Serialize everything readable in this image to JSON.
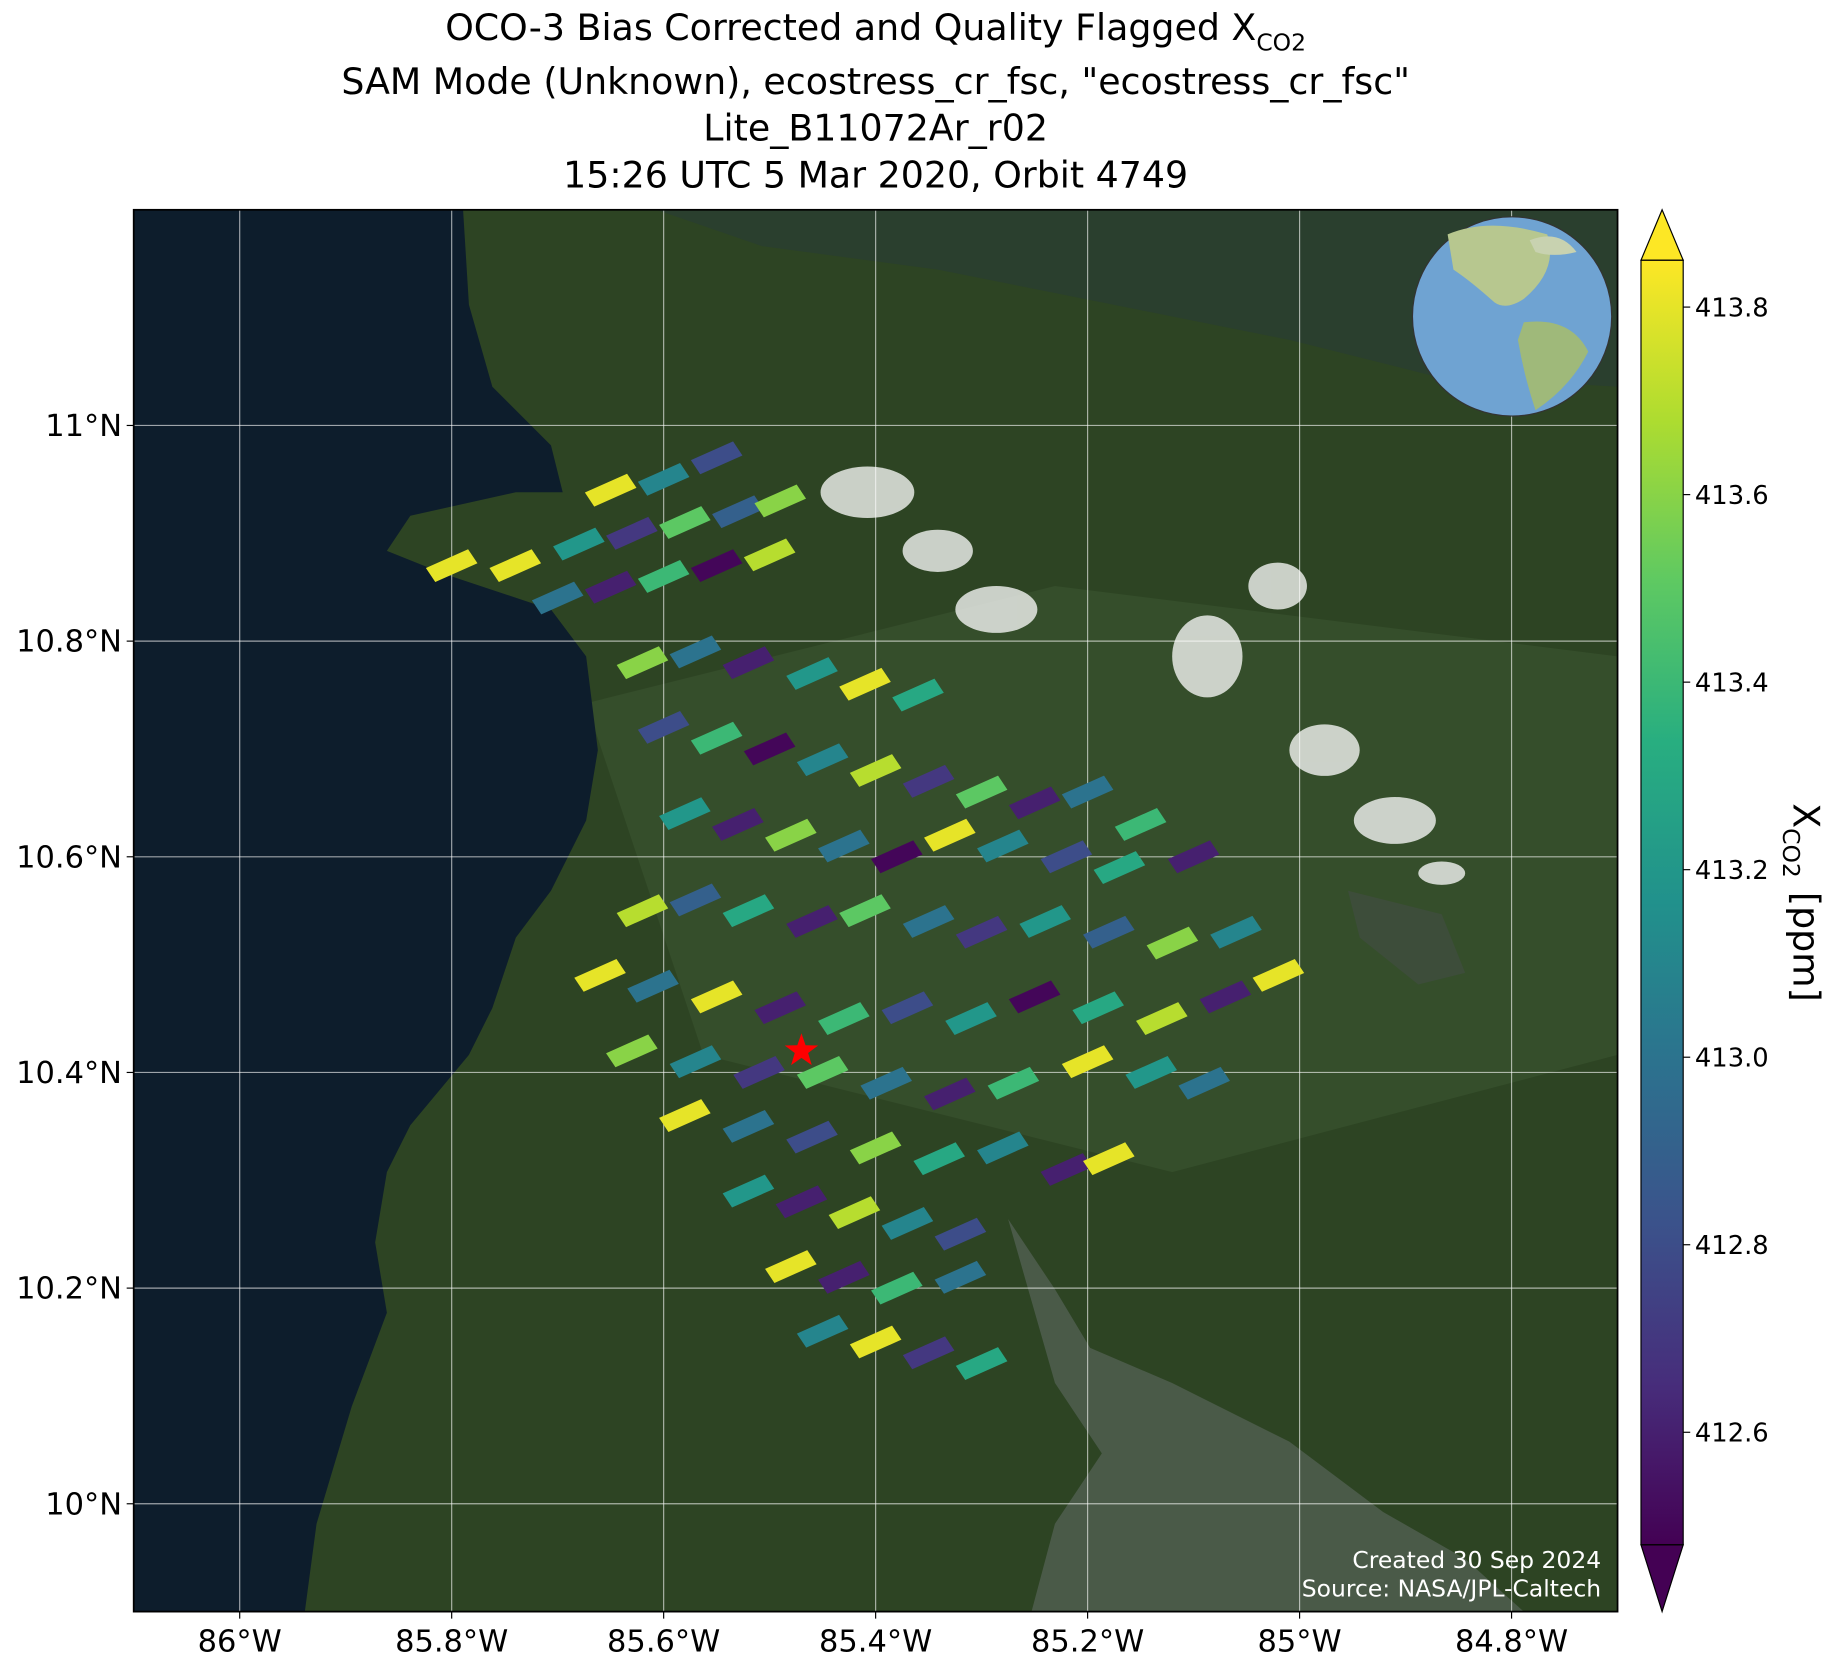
{
  "chart_data": {
    "type": "map",
    "title_lines": [
      {
        "text": "OCO-3 Bias Corrected and Quality Flagged X",
        "subscript": "CO2"
      },
      {
        "text": "SAM Mode (Unknown), ecostress_cr_fsc, \"ecostress_cr_fsc\""
      },
      {
        "text": "Lite_B11072Ar_r02"
      },
      {
        "text": "15:26 UTC 5 Mar 2020, Orbit 4749"
      }
    ],
    "xlim": [
      -86.1,
      -84.7
    ],
    "ylim": [
      9.9,
      11.2
    ],
    "xticks": [
      {
        "value": -86,
        "label": "86°W"
      },
      {
        "value": -85.8,
        "label": "85.8°W"
      },
      {
        "value": -85.6,
        "label": "85.6°W"
      },
      {
        "value": -85.4,
        "label": "85.4°W"
      },
      {
        "value": -85.2,
        "label": "85.2°W"
      },
      {
        "value": -85,
        "label": "85°W"
      },
      {
        "value": -84.8,
        "label": "84.8°W"
      }
    ],
    "yticks": [
      {
        "value": 10,
        "label": "10°N"
      },
      {
        "value": 10.2,
        "label": "10.2°N"
      },
      {
        "value": 10.4,
        "label": "10.4°N"
      },
      {
        "value": 10.6,
        "label": "10.6°N"
      },
      {
        "value": 10.8,
        "label": "10.8°N"
      },
      {
        "value": 11,
        "label": "11°N"
      }
    ],
    "grid": true,
    "lon": [
      -85.8,
      -85.74,
      -85.68,
      -85.63,
      -85.58,
      -85.53,
      -85.49,
      -85.7,
      -85.65,
      -85.6,
      -85.55,
      -85.5,
      -85.65,
      -85.6,
      -85.55,
      -85.62,
      -85.57,
      -85.52,
      -85.46,
      -85.41,
      -85.36,
      -85.6,
      -85.55,
      -85.5,
      -85.45,
      -85.4,
      -85.35,
      -85.3,
      -85.25,
      -85.2,
      -85.15,
      -85.58,
      -85.53,
      -85.48,
      -85.43,
      -85.38,
      -85.33,
      -85.28,
      -85.22,
      -85.17,
      -85.1,
      -85.62,
      -85.57,
      -85.52,
      -85.46,
      -85.41,
      -85.35,
      -85.3,
      -85.24,
      -85.18,
      -85.12,
      -85.06,
      -85.66,
      -85.61,
      -85.55,
      -85.49,
      -85.43,
      -85.37,
      -85.31,
      -85.25,
      -85.19,
      -85.13,
      -85.07,
      -85.02,
      -85.63,
      -85.57,
      -85.51,
      -85.45,
      -85.39,
      -85.33,
      -85.27,
      -85.2,
      -85.14,
      -85.09,
      -85.58,
      -85.52,
      -85.46,
      -85.4,
      -85.34,
      -85.28,
      -85.22,
      -85.18,
      -85.52,
      -85.47,
      -85.42,
      -85.37,
      -85.32,
      -85.48,
      -85.43,
      -85.38,
      -85.32,
      -85.45,
      -85.4,
      -85.35,
      -85.3
    ],
    "lat": [
      10.87,
      10.87,
      10.89,
      10.9,
      10.91,
      10.92,
      10.93,
      10.84,
      10.85,
      10.86,
      10.87,
      10.88,
      10.94,
      10.95,
      10.97,
      10.78,
      10.79,
      10.78,
      10.77,
      10.76,
      10.75,
      10.72,
      10.71,
      10.7,
      10.69,
      10.68,
      10.67,
      10.66,
      10.65,
      10.66,
      10.63,
      10.64,
      10.63,
      10.62,
      10.61,
      10.6,
      10.62,
      10.61,
      10.6,
      10.59,
      10.6,
      10.55,
      10.56,
      10.55,
      10.54,
      10.55,
      10.54,
      10.53,
      10.54,
      10.53,
      10.52,
      10.53,
      10.49,
      10.48,
      10.47,
      10.46,
      10.45,
      10.46,
      10.45,
      10.47,
      10.46,
      10.45,
      10.47,
      10.49,
      10.42,
      10.41,
      10.4,
      10.4,
      10.39,
      10.38,
      10.39,
      10.41,
      10.4,
      10.39,
      10.36,
      10.35,
      10.34,
      10.33,
      10.32,
      10.33,
      10.31,
      10.32,
      10.29,
      10.28,
      10.27,
      10.26,
      10.25,
      10.22,
      10.21,
      10.2,
      10.21,
      10.16,
      10.15,
      10.14,
      10.13
    ],
    "values": [
      413.8,
      413.8,
      413.2,
      412.7,
      413.5,
      412.9,
      413.6,
      413.0,
      412.6,
      413.4,
      412.5,
      413.7,
      413.8,
      413.1,
      412.8,
      413.6,
      413.0,
      412.6,
      413.2,
      413.8,
      413.3,
      412.8,
      413.4,
      412.5,
      413.1,
      413.7,
      412.7,
      413.5,
      412.6,
      413.0,
      413.4,
      413.2,
      412.6,
      413.6,
      413.0,
      412.5,
      413.8,
      413.1,
      412.8,
      413.3,
      412.6,
      413.7,
      412.9,
      413.3,
      412.6,
      413.5,
      413.0,
      412.7,
      413.2,
      412.9,
      413.6,
      413.1,
      413.8,
      413.0,
      413.8,
      412.6,
      413.4,
      412.8,
      413.2,
      412.5,
      413.3,
      413.7,
      412.6,
      413.8,
      413.6,
      413.1,
      412.7,
      413.5,
      413.0,
      412.6,
      413.4,
      413.8,
      413.2,
      413.0,
      413.8,
      413.0,
      412.8,
      413.6,
      413.3,
      413.1,
      412.6,
      413.8,
      413.2,
      412.6,
      413.7,
      413.1,
      412.8,
      413.8,
      412.6,
      413.4,
      413.0,
      413.1,
      413.8,
      412.7,
      413.3
    ],
    "colormap": "viridis",
    "colorbar": {
      "label": "X",
      "label_subscript": "CO2",
      "label_suffix": "[ppm]",
      "lim": [
        412.48,
        413.85
      ],
      "ticks": [
        412.6,
        412.8,
        {
          "value": 413,
          "label": "413.0"
        },
        413.2,
        413.4,
        413.6,
        413.8
      ],
      "extend": "both"
    },
    "target": {
      "lon": -85.47,
      "lat": 10.42,
      "color": "red"
    },
    "annotations": [
      "Created 30 Sep 2024",
      "Source: NASA/JPL-Caltech"
    ]
  }
}
